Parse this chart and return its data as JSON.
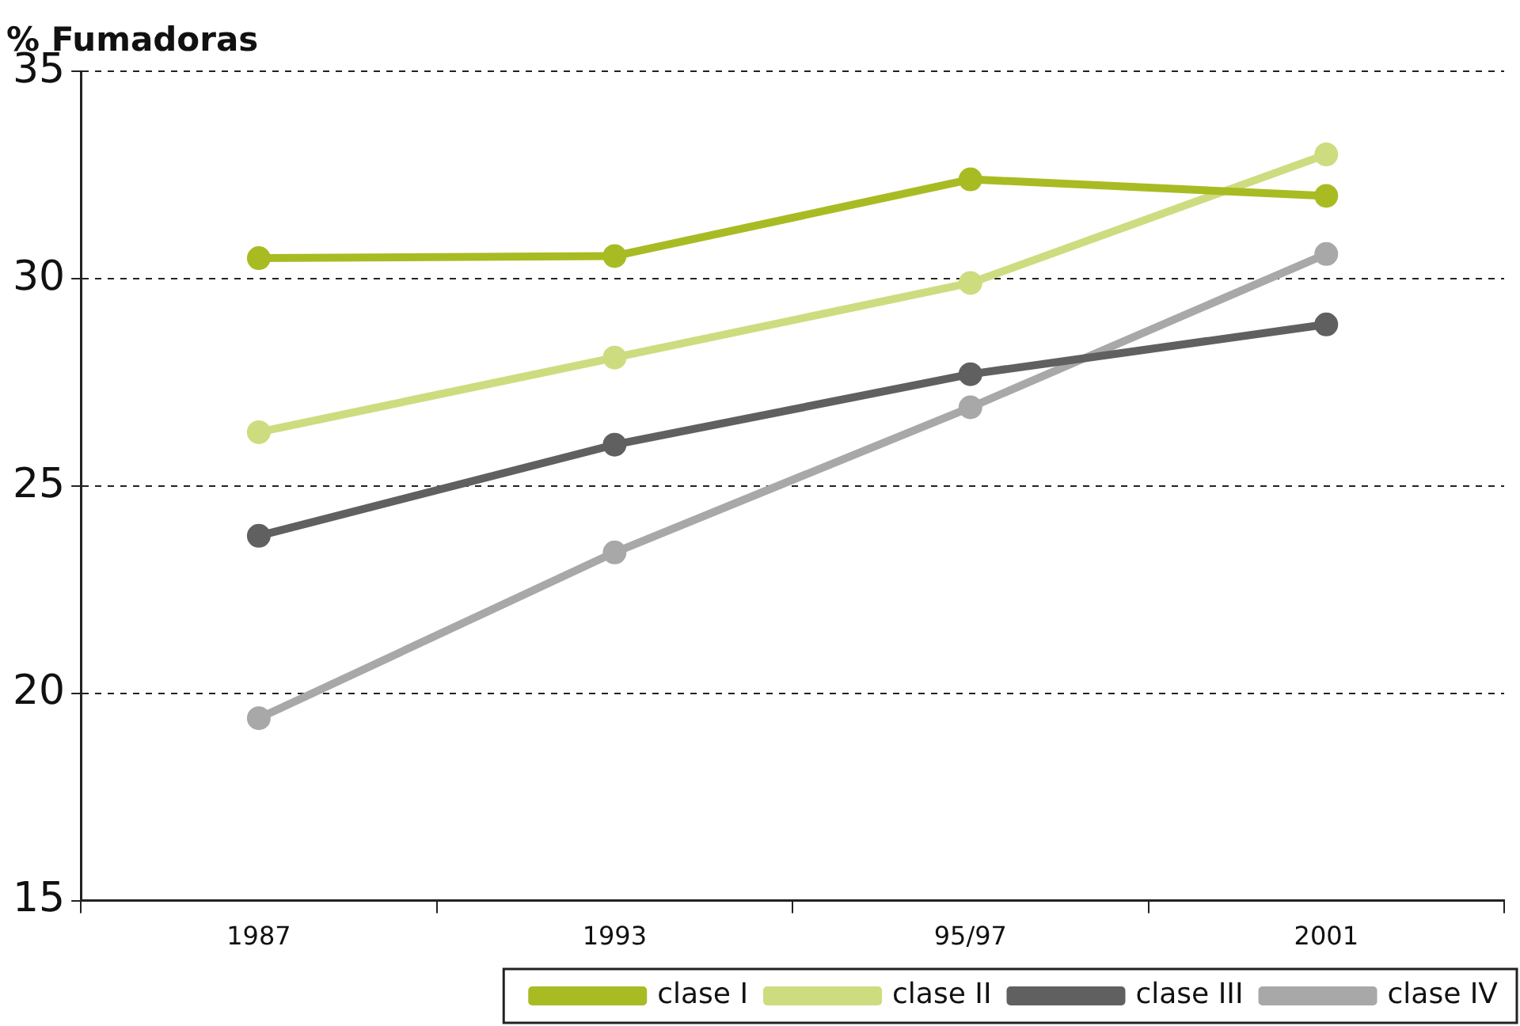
{
  "chart_data": {
    "type": "line",
    "title": "% Fumadoras",
    "categories": [
      "1987",
      "1993",
      "95/97",
      "2001"
    ],
    "series": [
      {
        "name": "clase I",
        "color": "#a9bb23",
        "values": [
          30.5,
          30.55,
          32.4,
          32.0
        ]
      },
      {
        "name": "clase II",
        "color": "#cddc7f",
        "values": [
          26.3,
          28.1,
          29.9,
          33.0
        ]
      },
      {
        "name": "clase III",
        "color": "#606060",
        "values": [
          23.8,
          26.0,
          27.7,
          28.9
        ]
      },
      {
        "name": "clase IV",
        "color": "#a8a8a8",
        "values": [
          19.4,
          23.4,
          26.9,
          30.6
        ]
      }
    ],
    "ylim": [
      15,
      35
    ],
    "yticks": [
      15,
      20,
      25,
      30,
      35
    ],
    "grid": "y",
    "legend": "bottom",
    "marker": "circle",
    "line_style": "solid"
  }
}
